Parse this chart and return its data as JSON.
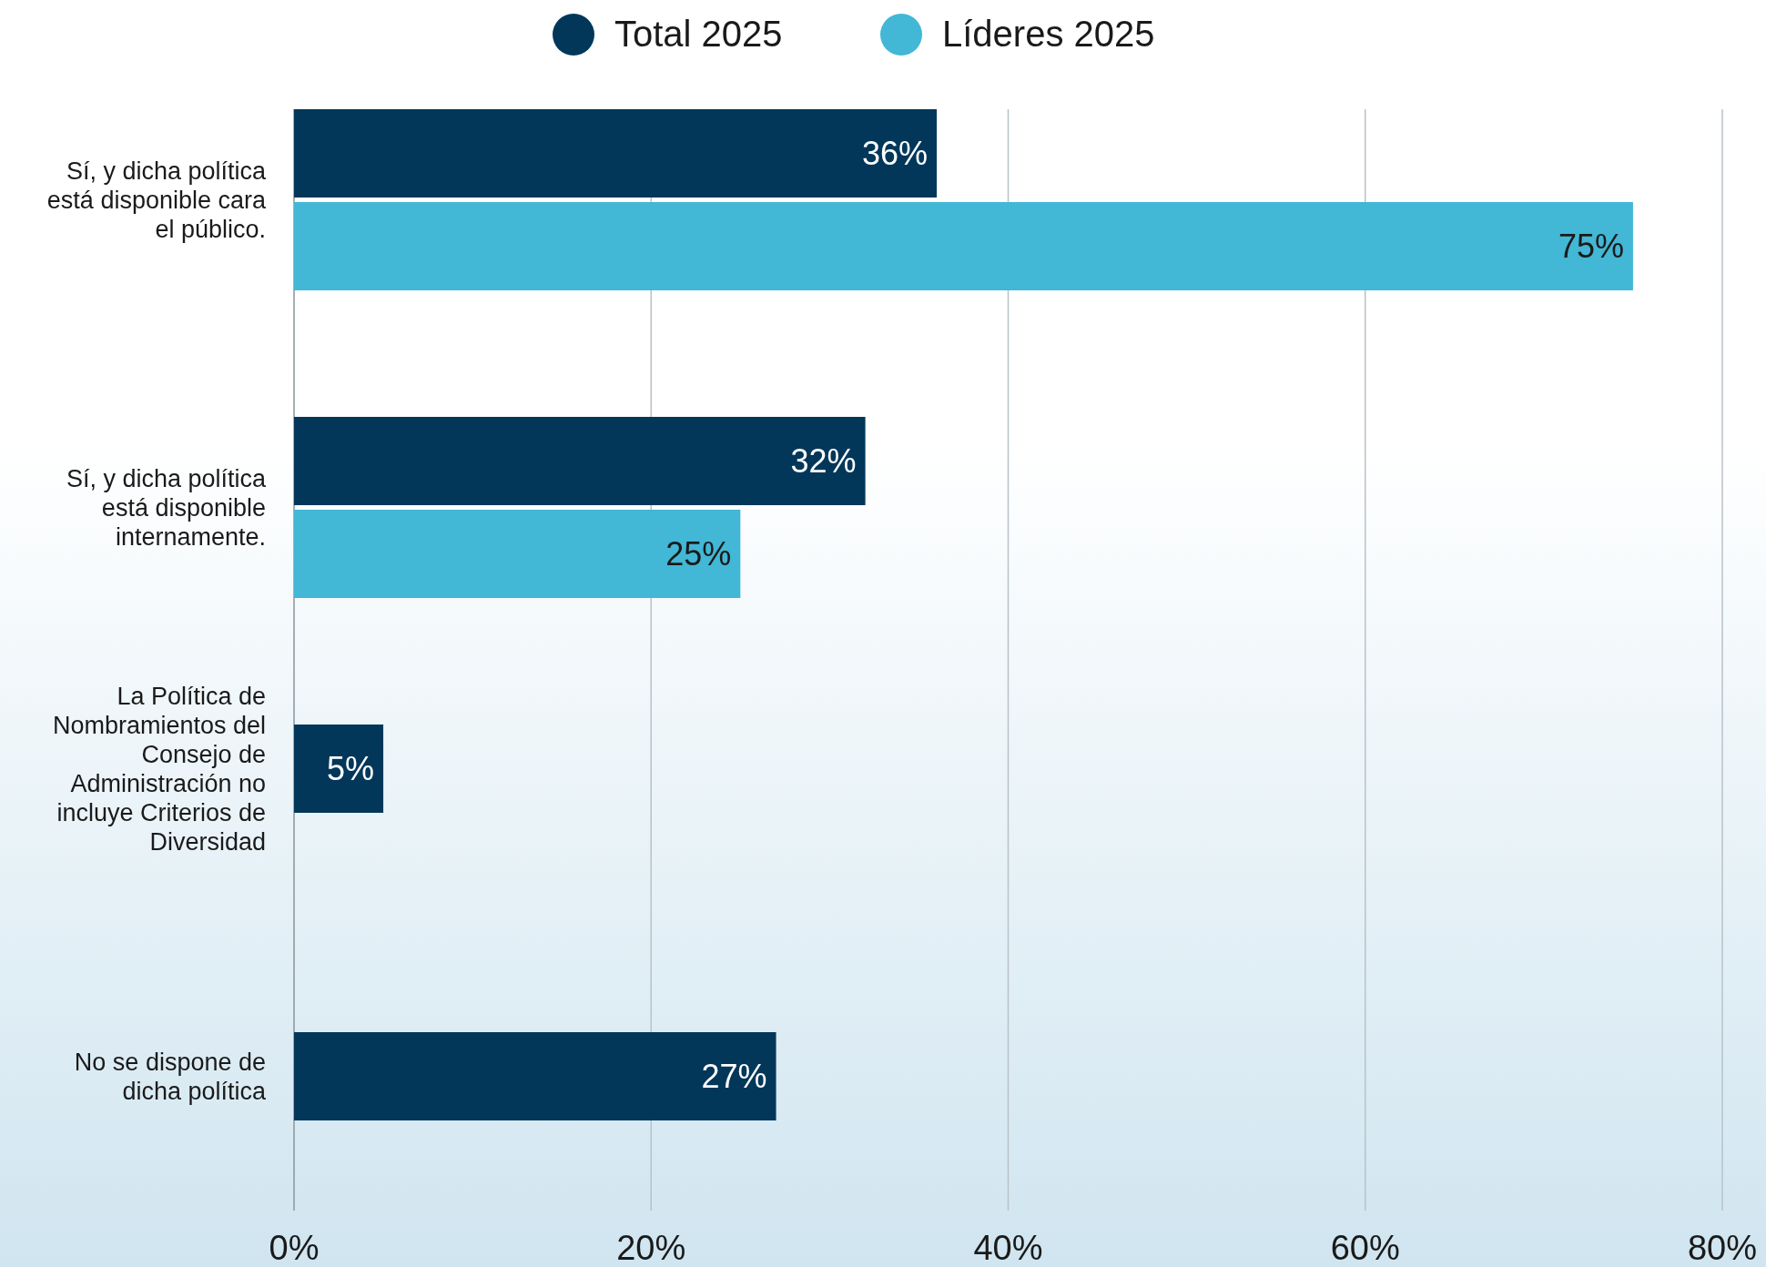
{
  "chart_data": {
    "type": "bar",
    "orientation": "horizontal",
    "categories": [
      "Sí, y dicha política está disponible cara el público.",
      "Sí, y dicha política está disponible internamente.",
      "La Política de Nombramientos del Consejo de Administración no incluye Criterios de Diversidad",
      "No se dispone de dicha política"
    ],
    "series": [
      {
        "name": "Total 2025",
        "color": "#02375a",
        "values": [
          36,
          32,
          5,
          27
        ]
      },
      {
        "name": "Líderes 2025",
        "color": "#42b7d6",
        "values": [
          75,
          25,
          null,
          null
        ]
      }
    ],
    "xlim": [
      0,
      80
    ],
    "xticks": [
      {
        "value": 0,
        "label": "0%"
      },
      {
        "value": 20,
        "label": "20%"
      },
      {
        "value": 40,
        "label": "40%"
      },
      {
        "value": 60,
        "label": "60%"
      },
      {
        "value": 80,
        "label": "80%"
      }
    ],
    "value_labels": [
      [
        "36%",
        "32%",
        "5%",
        "27%"
      ],
      [
        "75%",
        "25%",
        null,
        null
      ]
    ],
    "grid": "x",
    "legend": "top"
  }
}
